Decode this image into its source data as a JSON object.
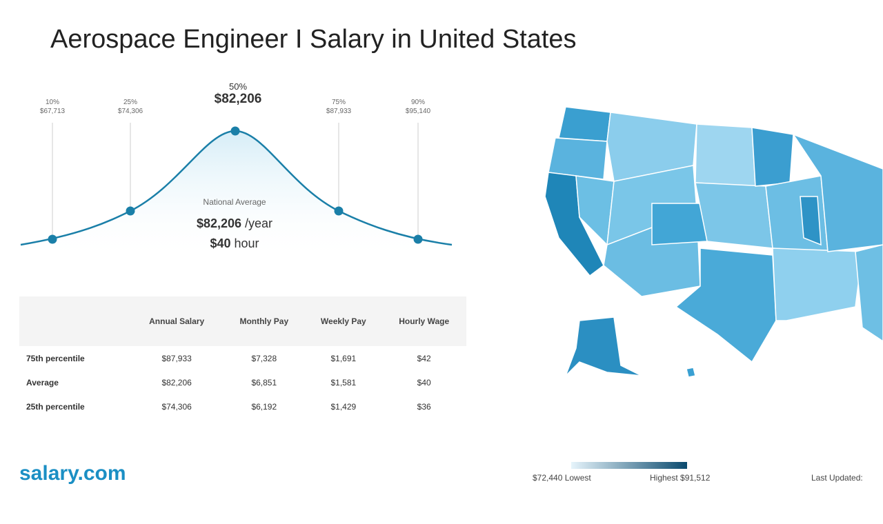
{
  "title": "Aerospace Engineer I Salary in United States",
  "chart_data": {
    "type": "line",
    "title": "",
    "percentiles": [
      {
        "label": "10%",
        "value": "$67,713",
        "y": 0.25
      },
      {
        "label": "25%",
        "value": "$74,306",
        "y": 0.55
      },
      {
        "label": "50%",
        "value": "$82,206",
        "y": 1.0
      },
      {
        "label": "75%",
        "value": "$87,933",
        "y": 0.55
      },
      {
        "label": "90%",
        "value": "$95,140",
        "y": 0.25
      }
    ],
    "national_average": {
      "label": "National Average",
      "yearly": "$82,206",
      "yearly_unit": "/year",
      "hourly": "$40",
      "hourly_unit": "hour"
    },
    "color": "#1a7fa8"
  },
  "table": {
    "headers": [
      "",
      "Annual Salary",
      "Monthly Pay",
      "Weekly Pay",
      "Hourly Wage"
    ],
    "rows": [
      [
        "75th percentile",
        "$87,933",
        "$7,328",
        "$1,691",
        "$42"
      ],
      [
        "Average",
        "$82,206",
        "$6,851",
        "$1,581",
        "$40"
      ],
      [
        "25th percentile",
        "$74,306",
        "$6,192",
        "$1,429",
        "$36"
      ]
    ]
  },
  "map_legend": {
    "low": "$72,440 Lowest",
    "high": "Highest $91,512",
    "low_color": "#e6f4fb",
    "high_color": "#0b4a6e"
  },
  "last_updated": "Last Updated: ",
  "logo": "salary.com"
}
